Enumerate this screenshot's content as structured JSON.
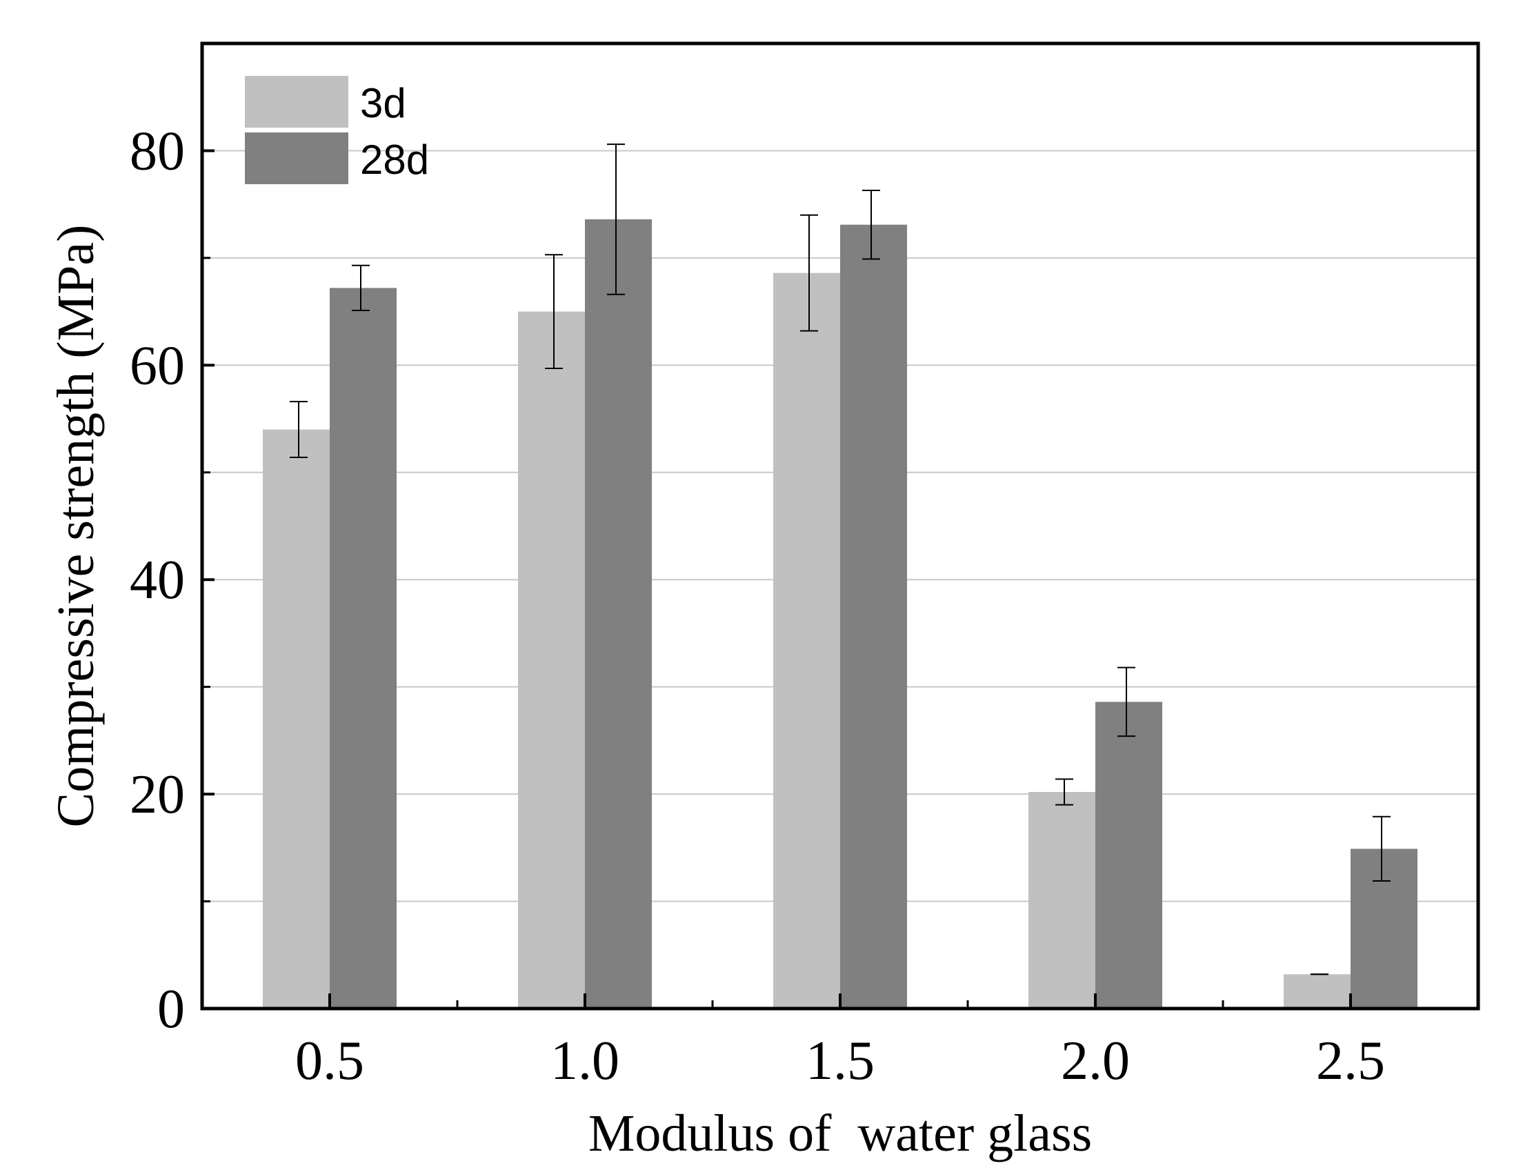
{
  "chart_data": {
    "type": "bar",
    "xlabel": "Modulus of  water glass",
    "ylabel": "Compressive strength (MPa)",
    "categories": [
      "0.5",
      "1.0",
      "1.5",
      "2.0",
      "2.5"
    ],
    "ylim": [
      0,
      90
    ],
    "y_ticks_major": [
      0,
      20,
      40,
      60,
      80
    ],
    "y_ticks_minor": [
      10,
      30,
      50,
      70
    ],
    "gridlines": [
      10,
      20,
      30,
      40,
      50,
      60,
      70,
      80
    ],
    "legend_position": "top-left",
    "series": [
      {
        "name": "3d",
        "color": "#c0c0c0",
        "values": [
          54.0,
          65.0,
          68.6,
          20.2,
          3.2
        ],
        "errors": [
          2.6,
          5.3,
          5.4,
          1.2,
          0.0
        ]
      },
      {
        "name": "28d",
        "color": "#808080",
        "values": [
          67.2,
          73.6,
          73.1,
          28.6,
          14.9
        ],
        "errors": [
          2.1,
          7.0,
          3.2,
          3.2,
          3.0
        ]
      }
    ]
  }
}
